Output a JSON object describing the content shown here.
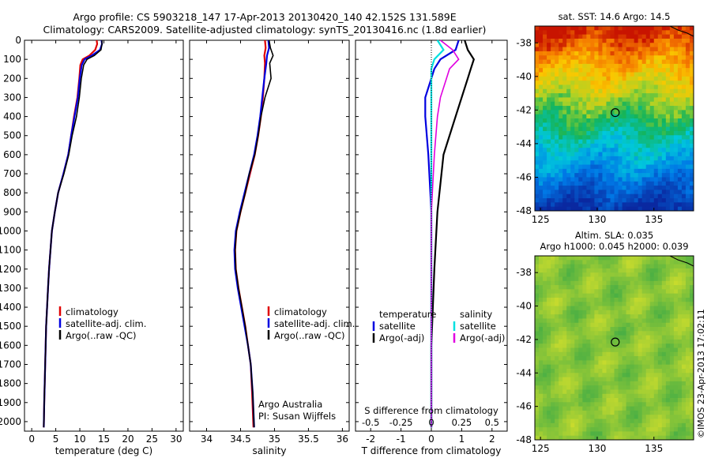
{
  "header": {
    "line1": "Argo profile: CS 5903218_147 17-Apr-2013 20130420_140 42.152S 131.589E",
    "line2": "Climatology: CARS2009. Satellite-adjusted climatology: synTS_20130416.nc (1.8d earlier)"
  },
  "colors": {
    "clim": "#e00000",
    "sat": "#0000e0",
    "argo": "#000000",
    "sat_s": "#00e0e0",
    "argo_s": "#e000e0"
  },
  "chart_data": [
    {
      "type": "line",
      "panel": "temperature",
      "xlabel": "temperature (deg C)",
      "xlim": [
        -1.5,
        31.5
      ],
      "ylim": [
        0,
        2050
      ],
      "xticks": [
        "0",
        "5",
        "10",
        "15",
        "20",
        "25",
        "30"
      ],
      "yticks": [
        "0",
        "100",
        "200",
        "300",
        "400",
        "500",
        "600",
        "700",
        "800",
        "900",
        "1000",
        "1100",
        "1200",
        "1300",
        "1400",
        "1500",
        "1600",
        "1700",
        "1800",
        "1900",
        "2000"
      ],
      "legend": [
        "climatology",
        "satellite-adj. clim.",
        "Argo(..raw -QC)"
      ],
      "legend_placement": "lower-right",
      "series": [
        {
          "name": "climatology",
          "color": "clim",
          "x": [
            13.5,
            13.6,
            13.2,
            12.0,
            10.6,
            10.1,
            9.9,
            9.5,
            8.8,
            8.2,
            7.6,
            6.6,
            5.5,
            4.8,
            4.2,
            3.9,
            3.6,
            3.4,
            3.2,
            3.0,
            2.8,
            2.6,
            2.5
          ],
          "y": [
            0,
            20,
            50,
            80,
            100,
            130,
            200,
            300,
            400,
            500,
            600,
            700,
            800,
            900,
            1000,
            1100,
            1200,
            1300,
            1400,
            1500,
            1700,
            1900,
            2030
          ]
        },
        {
          "name": "satellite-adj. clim.",
          "color": "sat",
          "x": [
            14.5,
            14.6,
            14.2,
            12.5,
            11.0,
            10.4,
            10.0,
            9.6,
            8.9,
            8.2,
            7.6,
            6.6,
            5.5,
            4.8,
            4.2,
            3.9,
            3.6,
            3.4,
            3.2,
            3.0,
            2.8,
            2.6,
            2.5
          ],
          "y": [
            0,
            20,
            50,
            80,
            100,
            130,
            200,
            300,
            400,
            500,
            600,
            700,
            800,
            900,
            1000,
            1100,
            1200,
            1300,
            1400,
            1500,
            1700,
            1900,
            2030
          ]
        },
        {
          "name": "Argo(..raw -QC)",
          "color": "argo",
          "x": [
            14.6,
            14.6,
            14.4,
            13.0,
            11.5,
            10.8,
            10.3,
            9.9,
            9.3,
            8.4,
            7.7,
            6.7,
            5.5,
            4.8,
            4.2,
            3.9,
            3.6,
            3.4,
            3.2,
            3.0,
            2.8,
            2.6,
            2.5
          ],
          "y": [
            0,
            20,
            50,
            80,
            100,
            130,
            200,
            300,
            400,
            500,
            600,
            700,
            800,
            900,
            1000,
            1100,
            1200,
            1300,
            1400,
            1500,
            1700,
            1900,
            2030
          ]
        }
      ]
    },
    {
      "type": "line",
      "panel": "salinity",
      "xlabel": "salinity",
      "xlim": [
        33.75,
        36.1
      ],
      "ylim": [
        0,
        2050
      ],
      "xticks": [
        "34",
        "34.5",
        "35",
        "35.5",
        "36"
      ],
      "legend": [
        "climatology",
        "satellite-adj. clim.",
        "Argo(..raw -QC)"
      ],
      "legend_placement": "lower-right",
      "annotation": [
        "Argo Australia",
        "PI: Susan Wijffels"
      ],
      "series": [
        {
          "name": "climatology",
          "color": "clim",
          "x": [
            34.86,
            34.87,
            34.85,
            34.86,
            34.85,
            34.83,
            34.8,
            34.76,
            34.71,
            34.64,
            34.57,
            34.5,
            34.44,
            34.42,
            34.43,
            34.47,
            34.52,
            34.57,
            34.61,
            34.65,
            34.67,
            34.69
          ],
          "y": [
            0,
            40,
            80,
            120,
            200,
            300,
            400,
            500,
            600,
            700,
            800,
            900,
            1000,
            1100,
            1200,
            1300,
            1400,
            1500,
            1600,
            1700,
            1850,
            2030
          ]
        },
        {
          "name": "satellite-adj. clim.",
          "color": "sat",
          "x": [
            34.91,
            34.92,
            34.89,
            34.88,
            34.85,
            34.82,
            34.79,
            34.75,
            34.7,
            34.63,
            34.56,
            34.49,
            34.43,
            34.41,
            34.42,
            34.46,
            34.51,
            34.56,
            34.61,
            34.65,
            34.68,
            34.7
          ],
          "y": [
            0,
            40,
            80,
            120,
            200,
            300,
            400,
            500,
            600,
            700,
            800,
            900,
            1000,
            1100,
            1200,
            1300,
            1400,
            1500,
            1600,
            1700,
            1850,
            2030
          ]
        },
        {
          "name": "Argo(..raw -QC)",
          "color": "argo",
          "x": [
            34.92,
            34.94,
            34.98,
            34.93,
            34.95,
            34.86,
            34.8,
            34.76,
            34.71,
            34.63,
            34.57,
            34.5,
            34.44,
            34.42,
            34.43,
            34.47,
            34.52,
            34.57,
            34.61,
            34.65,
            34.68,
            34.7
          ],
          "y": [
            0,
            40,
            80,
            120,
            200,
            300,
            400,
            500,
            600,
            700,
            800,
            900,
            1000,
            1100,
            1200,
            1300,
            1400,
            1500,
            1600,
            1700,
            1850,
            2030
          ]
        }
      ]
    },
    {
      "type": "line",
      "panel": "difference",
      "xlabel": "T difference from climatology",
      "xlabel_top": "S difference from climatology",
      "xlim": [
        -2.5,
        2.5
      ],
      "ylim": [
        0,
        2050
      ],
      "xticks": [
        "-2",
        "-1",
        "0",
        "1",
        "2"
      ],
      "xticks_top": [
        "-0.5",
        "-0.25",
        "0",
        "0.25",
        "0.5"
      ],
      "legend_t": [
        "temperature",
        "satellite",
        "Argo(-adj)"
      ],
      "legend_s": [
        "salinity",
        "satellite",
        "Argo(-adj)"
      ],
      "legend_placement": "lower",
      "series": [
        {
          "name": "satellite",
          "color": "sat",
          "x": [
            0.9,
            0.8,
            0.3,
            0.1,
            0.0,
            -0.2,
            -0.2,
            -0.1,
            0.0,
            0.0,
            0.0,
            0.0
          ],
          "y": [
            0,
            50,
            100,
            150,
            200,
            300,
            400,
            600,
            900,
            1200,
            1600,
            2030
          ]
        },
        {
          "name": "Argo(-adj)",
          "color": "argo",
          "x": [
            1.1,
            1.2,
            1.4,
            1.3,
            1.2,
            1.0,
            0.8,
            0.4,
            0.2,
            0.1,
            0.0,
            0.0
          ],
          "y": [
            0,
            50,
            100,
            150,
            200,
            300,
            400,
            600,
            900,
            1200,
            1600,
            2030
          ]
        },
        {
          "name": "satellite",
          "color": "sat_s",
          "x": [
            0.2,
            0.4,
            0.1,
            0.0,
            0.0,
            0.0,
            0.0,
            0.0,
            0.0,
            0.0,
            0.0,
            0.0
          ],
          "y": [
            0,
            50,
            100,
            150,
            200,
            300,
            400,
            600,
            900,
            1200,
            1600,
            2030
          ]
        },
        {
          "name": "Argo(-adj)",
          "color": "argo_s",
          "x": [
            0.3,
            0.7,
            0.9,
            0.6,
            0.5,
            0.3,
            0.2,
            0.1,
            0.0,
            0.0,
            0.0,
            0.0
          ],
          "y": [
            0,
            50,
            100,
            150,
            200,
            300,
            400,
            600,
            900,
            1200,
            1600,
            2030
          ]
        }
      ]
    },
    {
      "type": "heatmap",
      "panel": "sst-map",
      "title": "sat. SST: 14.6  Argo: 14.5",
      "xlim": [
        124.5,
        138.5
      ],
      "ylim": [
        -48,
        -37
      ],
      "xticks": [
        "125",
        "130",
        "135"
      ],
      "yticks": [
        "-38",
        "-40",
        "-42",
        "-44",
        "-46",
        "-48"
      ],
      "marker": {
        "lon": 131.589,
        "lat": -42.152
      }
    },
    {
      "type": "heatmap",
      "panel": "sla-map",
      "title": "Altim. SLA: 0.035",
      "subtitle": "Argo h1000: 0.045 h2000: 0.039",
      "xlim": [
        124.5,
        138.5
      ],
      "ylim": [
        -48,
        -37
      ],
      "xticks": [
        "125",
        "130",
        "135"
      ],
      "yticks": [
        "-38",
        "-40",
        "-42",
        "-44",
        "-46",
        "-48"
      ],
      "marker": {
        "lon": 131.589,
        "lat": -42.152
      }
    }
  ],
  "side_label": "©IMOS 23-Apr-2013 17:02:11"
}
